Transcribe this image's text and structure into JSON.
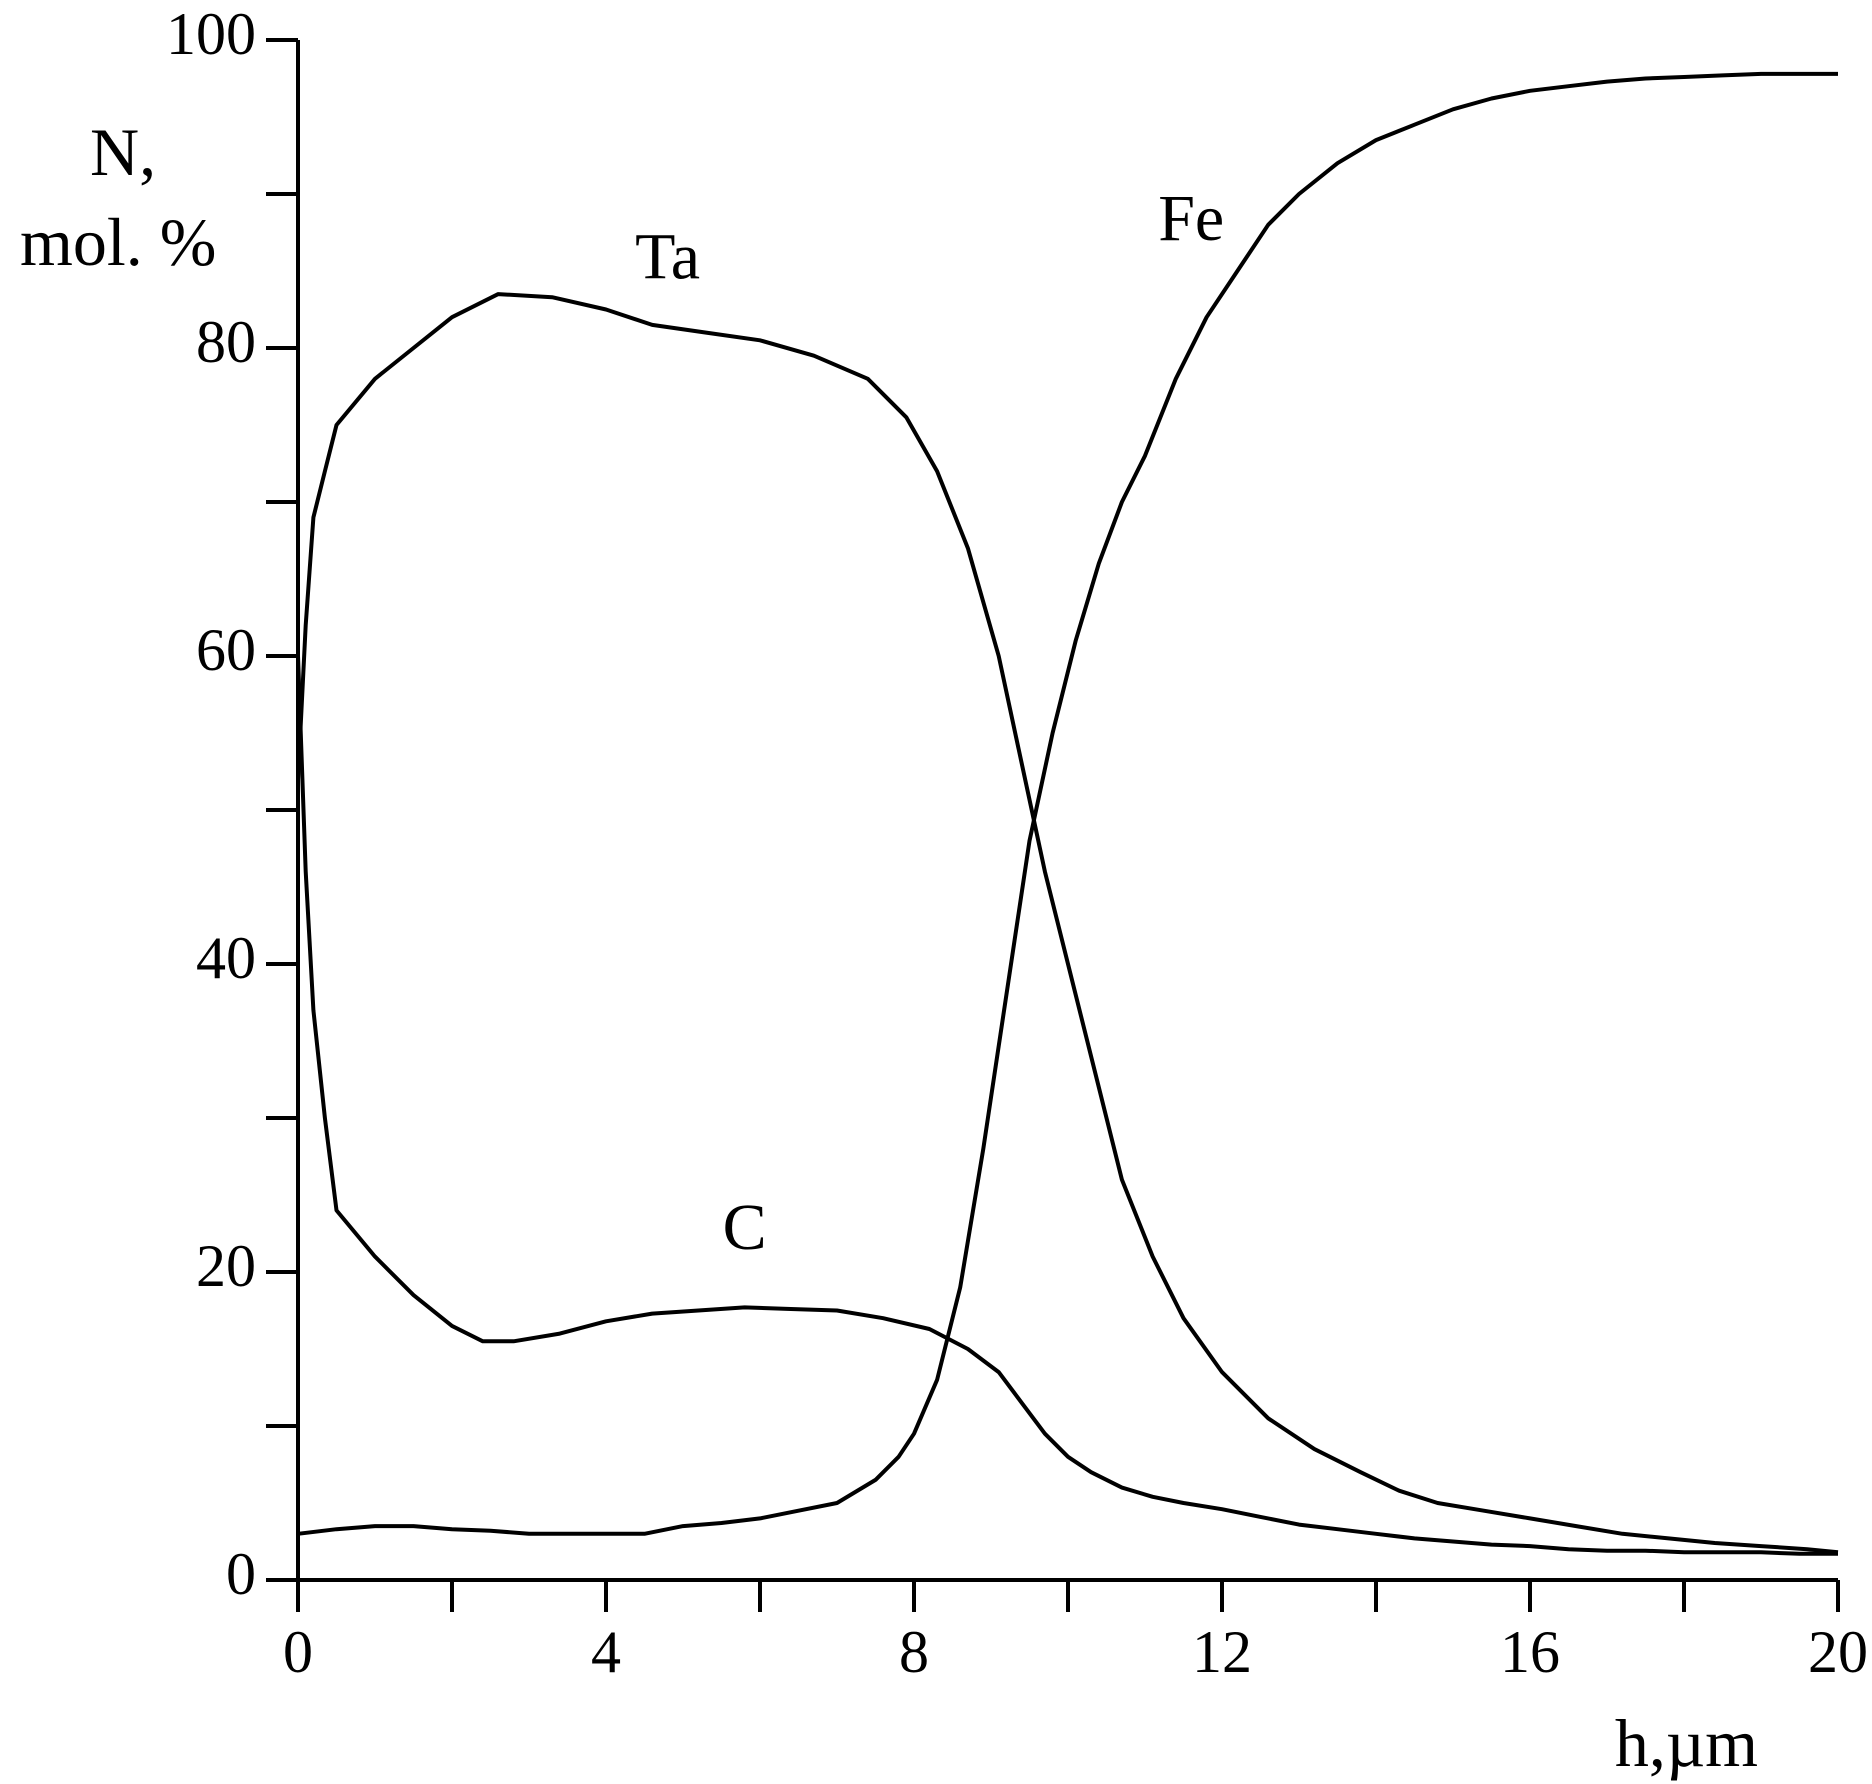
{
  "chart_data": {
    "type": "line",
    "xlabel": "h,µm",
    "ylabel_lines": [
      "N,",
      "mol. %"
    ],
    "xlim": [
      0,
      20
    ],
    "ylim": [
      0,
      100
    ],
    "x_ticks": [
      0,
      4,
      8,
      12,
      16,
      20
    ],
    "x_minor_ticks": [
      2,
      6,
      10,
      14,
      18
    ],
    "y_ticks": [
      0,
      20,
      40,
      60,
      80,
      100
    ],
    "y_minor_ticks": [
      10,
      30,
      50,
      70,
      90
    ],
    "grid": false,
    "line_color": "#000000",
    "series": [
      {
        "name": "Ta",
        "label_at": [
          4.8,
          84.5
        ],
        "x": [
          0,
          0.1,
          0.2,
          0.35,
          0.5,
          1.0,
          1.5,
          2.0,
          2.6,
          3.3,
          4.0,
          4.6,
          5.3,
          6.0,
          6.7,
          7.4,
          7.9,
          8.3,
          8.7,
          9.1,
          9.4,
          9.7,
          10.0,
          10.3,
          10.7,
          11.1,
          11.5,
          12.0,
          12.6,
          13.2,
          13.8,
          14.3,
          14.8,
          15.4,
          16.0,
          16.6,
          17.2,
          17.8,
          18.4,
          19.0,
          19.6,
          20.0
        ],
        "y": [
          52,
          62,
          69,
          72,
          75,
          78,
          80,
          82,
          83.5,
          83.3,
          82.5,
          81.5,
          81,
          80.5,
          79.5,
          78,
          75.5,
          72,
          67,
          60,
          53,
          46,
          40,
          34,
          26,
          21,
          17,
          13.5,
          10.5,
          8.5,
          7,
          5.8,
          5,
          4.5,
          4,
          3.5,
          3,
          2.7,
          2.4,
          2.2,
          2.0,
          1.8
        ]
      },
      {
        "name": "Fe",
        "label_at": [
          11.6,
          87.0
        ],
        "x": [
          0,
          0.5,
          1.0,
          1.5,
          2.0,
          2.5,
          3.0,
          3.5,
          4.0,
          4.5,
          5.0,
          5.5,
          6.0,
          6.5,
          7.0,
          7.5,
          7.8,
          8.0,
          8.3,
          8.6,
          8.9,
          9.2,
          9.5,
          9.8,
          10.1,
          10.4,
          10.7,
          11.0,
          11.4,
          11.8,
          12.2,
          12.6,
          13.0,
          13.5,
          14.0,
          14.5,
          15.0,
          15.5,
          16.0,
          16.5,
          17.0,
          17.5,
          18.0,
          18.5,
          19.0,
          19.5,
          20.0
        ],
        "y": [
          3,
          3.3,
          3.5,
          3.5,
          3.3,
          3.2,
          3.0,
          3.0,
          3.0,
          3.0,
          3.5,
          3.7,
          4.0,
          4.5,
          5,
          6.5,
          8,
          9.5,
          13,
          19,
          28,
          38,
          48,
          55,
          61,
          66,
          70,
          73,
          78,
          82,
          85,
          88,
          90,
          92,
          93.5,
          94.5,
          95.5,
          96.2,
          96.7,
          97,
          97.3,
          97.5,
          97.6,
          97.7,
          97.8,
          97.8,
          97.8
        ]
      },
      {
        "name": "C",
        "label_at": [
          5.8,
          21.5
        ],
        "x": [
          0,
          0.1,
          0.2,
          0.35,
          0.5,
          1.0,
          1.5,
          2.0,
          2.4,
          2.8,
          3.4,
          4.0,
          4.6,
          5.2,
          5.8,
          6.4,
          7.0,
          7.6,
          8.2,
          8.7,
          9.1,
          9.4,
          9.7,
          10.0,
          10.3,
          10.7,
          11.1,
          11.5,
          12.0,
          12.5,
          13.0,
          13.5,
          14.0,
          14.5,
          15.0,
          15.5,
          16.0,
          16.5,
          17.0,
          17.5,
          18.0,
          18.5,
          19.0,
          19.5,
          20.0
        ],
        "y": [
          60,
          46,
          37,
          30,
          24,
          21,
          18.5,
          16.5,
          15.5,
          15.5,
          16,
          16.8,
          17.3,
          17.5,
          17.7,
          17.6,
          17.5,
          17,
          16.3,
          15,
          13.5,
          11.5,
          9.5,
          8,
          7,
          6,
          5.4,
          5.0,
          4.6,
          4.1,
          3.6,
          3.3,
          3.0,
          2.7,
          2.5,
          2.3,
          2.2,
          2.0,
          1.9,
          1.9,
          1.8,
          1.8,
          1.8,
          1.7,
          1.7
        ]
      }
    ]
  }
}
